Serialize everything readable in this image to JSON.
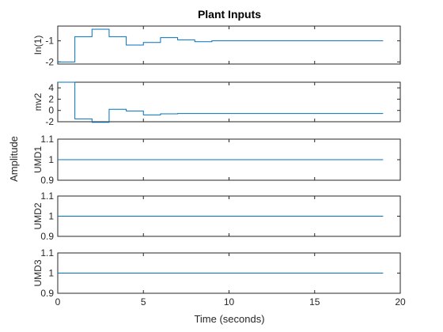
{
  "title": "Plant Inputs",
  "xlabel": "Time (seconds)",
  "ylabel": "Amplitude",
  "line_color": "#0072BD",
  "x_ticks": [
    0,
    5,
    10,
    15,
    20
  ],
  "chart_data": [
    {
      "type": "line",
      "name": "In(1)",
      "xlim": [
        0,
        20
      ],
      "ylim": [
        -2.1,
        -0.3
      ],
      "y_ticks": [
        -2,
        -1
      ],
      "step": true,
      "x": [
        0,
        1,
        2,
        3,
        4,
        5,
        6,
        7,
        8,
        9,
        10,
        11,
        12,
        13,
        14,
        15,
        16,
        17,
        18,
        19
      ],
      "values": [
        -2.0,
        -0.8,
        -0.45,
        -0.8,
        -1.2,
        -1.08,
        -0.85,
        -0.95,
        -1.04,
        -1.0,
        -1.0,
        -1.0,
        -1.0,
        -1.0,
        -1.0,
        -1.0,
        -1.0,
        -1.0,
        -1.0,
        -1.0
      ]
    },
    {
      "type": "line",
      "name": "mv2",
      "xlim": [
        0,
        20
      ],
      "ylim": [
        -2,
        5
      ],
      "y_ticks": [
        -2,
        0,
        2,
        4
      ],
      "step": true,
      "x": [
        0,
        1,
        2,
        3,
        4,
        5,
        6,
        7,
        8,
        9,
        10,
        11,
        12,
        13,
        14,
        15,
        16,
        17,
        18,
        19
      ],
      "values": [
        5.0,
        -1.5,
        -2.1,
        0.2,
        -0.1,
        -0.8,
        -0.6,
        -0.55,
        -0.55,
        -0.55,
        -0.55,
        -0.55,
        -0.55,
        -0.55,
        -0.55,
        -0.55,
        -0.55,
        -0.55,
        -0.55,
        -0.55
      ]
    },
    {
      "type": "line",
      "name": "UMD1",
      "xlim": [
        0,
        20
      ],
      "ylim": [
        0.9,
        1.1
      ],
      "y_ticks": [
        0.9,
        1,
        1.1
      ],
      "x": [
        0,
        19
      ],
      "values": [
        1,
        1
      ]
    },
    {
      "type": "line",
      "name": "UMD2",
      "xlim": [
        0,
        20
      ],
      "ylim": [
        0.9,
        1.1
      ],
      "y_ticks": [
        0.9,
        1,
        1.1
      ],
      "x": [
        0,
        19
      ],
      "values": [
        1,
        1
      ]
    },
    {
      "type": "line",
      "name": "UMD3",
      "xlim": [
        0,
        20
      ],
      "ylim": [
        0.9,
        1.1
      ],
      "y_ticks": [
        0.9,
        1,
        1.1
      ],
      "x": [
        0,
        19
      ],
      "values": [
        1,
        1
      ]
    }
  ]
}
